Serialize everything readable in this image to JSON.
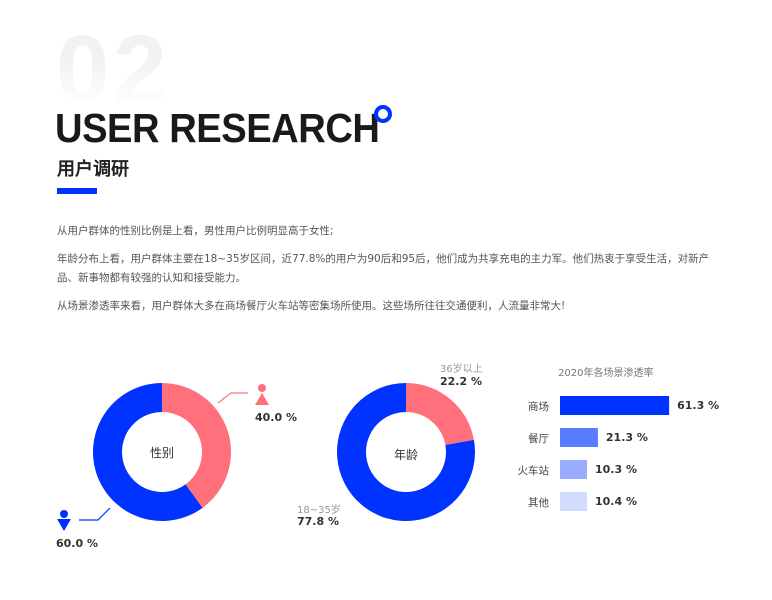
{
  "header": {
    "ghost_number": "02",
    "title": "USER RESEARCH",
    "subtitle": "用户调研"
  },
  "paragraphs": [
    "从用户群体的性别比例是上看，男性用户比例明显高于女性;",
    "年龄分布上看，用户群体主要在18~35岁区间，近77.8%的用户为90后和95后，他们成为共享充电的主力军。他们热衷于享受生活，对新产品、新事物都有较强的认知和接受能力。",
    "从场景渗透率来看，用户群体大多在商场餐厅火车站等密集场所使用。这些场所往往交通便利，人流量非常大!"
  ],
  "colors": {
    "blue": "#0033ff",
    "pink": "#ff707c"
  },
  "chart_data": [
    {
      "type": "pie",
      "title": "性别",
      "slices": [
        {
          "name": "female",
          "value": 40.0,
          "label": "40.0 %",
          "color": "#ff707c",
          "icon": "female-icon"
        },
        {
          "name": "male",
          "value": 60.0,
          "label": "60.0 %",
          "color": "#0033ff",
          "icon": "male-icon"
        }
      ]
    },
    {
      "type": "pie",
      "title": "年龄",
      "slices": [
        {
          "name": "36岁以上",
          "value": 22.2,
          "label": "22.2 %",
          "color": "#ff707c"
        },
        {
          "name": "18~35岁",
          "value": 77.8,
          "label": "77.8 %",
          "color": "#0033ff"
        }
      ]
    },
    {
      "type": "bar",
      "orientation": "horizontal",
      "title": "2020年各场景渗透率",
      "categories": [
        "商场",
        "餐厅",
        "火车站",
        "其他"
      ],
      "values": [
        61.3,
        21.3,
        10.3,
        10.4
      ],
      "labels": [
        "61.3 %",
        "21.3 %",
        "10.3 %",
        "10.4 %"
      ],
      "colors": [
        "#0033ff",
        "#5a7cff",
        "#99adff",
        "#d2dcff"
      ]
    }
  ]
}
